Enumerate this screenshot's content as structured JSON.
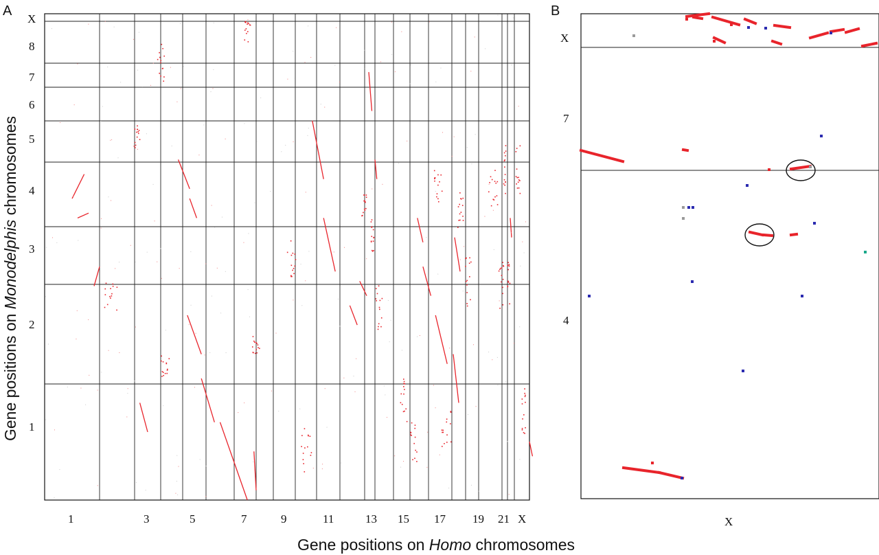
{
  "chart_data": [
    {
      "panel": "A",
      "type": "scatter",
      "xlabel_parts": [
        "Gene positions on ",
        "Homo",
        " chromosomes"
      ],
      "ylabel_parts": [
        "Gene positions  on ",
        "Monodelphis",
        " chromosomes"
      ],
      "x_tick_labels": [
        "1",
        "3",
        "5",
        "7",
        "9",
        "11",
        "13",
        "15",
        "17",
        "19",
        "21",
        "X"
      ],
      "y_tick_labels": [
        "X",
        "8",
        "7",
        "6",
        "5",
        "4",
        "3",
        "2",
        "1"
      ],
      "colors": {
        "point": "#e8242b",
        "grid": "#222222"
      },
      "segments": [
        [
          0.6,
          0.42,
          0.8,
          0.41
        ],
        [
          0.5,
          0.38,
          0.72,
          0.33
        ],
        [
          0.9,
          0.56,
          1.0,
          0.52
        ],
        [
          2.2,
          0.8,
          2.5,
          0.86
        ],
        [
          3.8,
          0.3,
          4.3,
          0.36
        ],
        [
          4.3,
          0.38,
          4.6,
          0.42
        ],
        [
          4.2,
          0.62,
          4.8,
          0.7
        ],
        [
          4.8,
          0.75,
          5.3,
          0.84
        ],
        [
          5.5,
          0.84,
          6.6,
          1.0
        ],
        [
          6.9,
          0.9,
          7.0,
          0.98
        ],
        [
          9.8,
          0.22,
          10.3,
          0.34
        ],
        [
          10.3,
          0.42,
          10.8,
          0.53
        ],
        [
          11.4,
          0.6,
          11.7,
          0.64
        ],
        [
          11.8,
          0.55,
          12.2,
          0.58
        ],
        [
          12.4,
          0.12,
          12.7,
          0.2
        ],
        [
          13.0,
          0.3,
          13.1,
          0.34
        ],
        [
          15.4,
          0.42,
          15.7,
          0.47
        ],
        [
          15.7,
          0.52,
          16.1,
          0.58
        ],
        [
          16.3,
          0.62,
          16.8,
          0.72
        ],
        [
          17.1,
          0.7,
          17.5,
          0.8
        ],
        [
          17.2,
          0.46,
          17.6,
          0.53
        ],
        [
          21.4,
          0.42,
          21.6,
          0.46
        ],
        [
          23.0,
          0.88,
          23.2,
          0.91
        ]
      ],
      "clusters": [
        [
          1.3,
          0.58,
          0.4,
          0.06
        ],
        [
          2.1,
          0.25,
          0.3,
          0.05
        ],
        [
          3.0,
          0.1,
          0.3,
          0.08
        ],
        [
          3.2,
          0.72,
          0.4,
          0.05
        ],
        [
          6.6,
          0.04,
          0.3,
          0.05
        ],
        [
          7.0,
          0.68,
          0.4,
          0.04
        ],
        [
          8.8,
          0.5,
          0.4,
          0.08
        ],
        [
          9.5,
          0.9,
          0.5,
          0.1
        ],
        [
          12.0,
          0.4,
          0.3,
          0.06
        ],
        [
          12.7,
          0.45,
          0.3,
          0.08
        ],
        [
          13.2,
          0.6,
          0.4,
          0.1
        ],
        [
          14.6,
          0.8,
          0.4,
          0.1
        ],
        [
          15.2,
          0.88,
          0.4,
          0.08
        ],
        [
          16.4,
          0.35,
          0.4,
          0.08
        ],
        [
          16.8,
          0.86,
          0.5,
          0.1
        ],
        [
          17.6,
          0.4,
          0.4,
          0.08
        ],
        [
          18.2,
          0.55,
          0.5,
          0.1
        ],
        [
          19.6,
          0.36,
          0.4,
          0.08
        ],
        [
          20.4,
          0.32,
          0.4,
          0.1
        ],
        [
          21.1,
          0.55,
          0.4,
          0.1
        ],
        [
          22.2,
          0.32,
          0.3,
          0.1
        ],
        [
          22.6,
          0.82,
          0.3,
          0.1
        ],
        [
          20.0,
          0.56,
          0.4,
          0.1
        ]
      ]
    },
    {
      "panel": "B",
      "type": "scatter",
      "x_tick_labels": [
        "X"
      ],
      "y_tick_labels": [
        "X",
        "7",
        "4"
      ],
      "colors": {
        "red": "#e8242b",
        "blue": "#2b2bb0",
        "gray": "#9a9a9a",
        "green": "#1aa88a"
      },
      "red_segments": [
        [
          0.0,
          0.7,
          0.15,
          0.4
        ],
        [
          0.18,
          0.98,
          0.23,
          0.96
        ],
        [
          0.26,
          0.1,
          0.3,
          0.05
        ],
        [
          0.27,
          0.14,
          0.3,
          0.12
        ],
        [
          0.3,
          0.44,
          0.31,
          0.38
        ],
        [
          0.32,
          0.56,
          0.33,
          0.5
        ],
        [
          0.37,
          0.3,
          0.41,
          0.26
        ],
        [
          0.4,
          0.68,
          0.43,
          0.64
        ],
        [
          0.53,
          0.62,
          0.55,
          0.58
        ],
        [
          0.61,
          0.54,
          0.67,
          0.5
        ],
        [
          0.71,
          0.7,
          0.82,
          0.64
        ],
        [
          0.77,
          0.44,
          0.84,
          0.3
        ],
        [
          0.88,
          0.62,
          0.95,
          0.54
        ],
        [
          0.96,
          0.94,
          1.0,
          0.88
        ]
      ],
      "red_points": [
        [
          0.43,
          0.05
        ],
        [
          0.47,
          0.06
        ],
        [
          0.5,
          0.2
        ],
        [
          0.35,
          0.18
        ],
        [
          0.37,
          0.08
        ]
      ]
    }
  ]
}
